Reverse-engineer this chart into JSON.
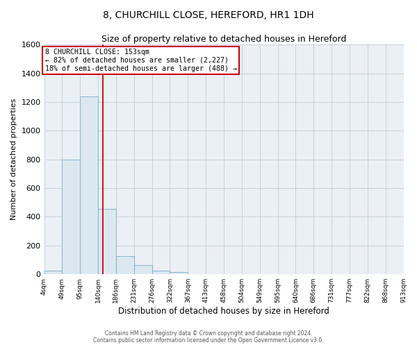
{
  "title": "8, CHURCHILL CLOSE, HEREFORD, HR1 1DH",
  "subtitle": "Size of property relative to detached houses in Hereford",
  "xlabel": "Distribution of detached houses by size in Hereford",
  "ylabel": "Number of detached properties",
  "bin_labels": [
    "4sqm",
    "49sqm",
    "95sqm",
    "140sqm",
    "186sqm",
    "231sqm",
    "276sqm",
    "322sqm",
    "367sqm",
    "413sqm",
    "458sqm",
    "504sqm",
    "549sqm",
    "595sqm",
    "640sqm",
    "686sqm",
    "731sqm",
    "777sqm",
    "822sqm",
    "868sqm",
    "913sqm"
  ],
  "bar_heights": [
    25,
    800,
    1240,
    455,
    125,
    62,
    25,
    15,
    0,
    0,
    0,
    0,
    0,
    0,
    0,
    0,
    0,
    0,
    0,
    0
  ],
  "bar_color": "#dce8f0",
  "bar_edge_color": "#7baac8",
  "ylim": [
    0,
    1600
  ],
  "yticks": [
    0,
    200,
    400,
    600,
    800,
    1000,
    1200,
    1400,
    1600
  ],
  "bin_edges_num": [
    4,
    49,
    95,
    140,
    186,
    231,
    276,
    322,
    367,
    413,
    458,
    504,
    549,
    595,
    640,
    686,
    731,
    777,
    822,
    868,
    913
  ],
  "prop_size": 153,
  "annotation_title": "8 CHURCHILL CLOSE: 153sqm",
  "annotation_line1": "← 82% of detached houses are smaller (2,227)",
  "annotation_line2": "18% of semi-detached houses are larger (488) →",
  "annotation_box_color": "#ffffff",
  "annotation_box_edge": "#cc0000",
  "red_line_color": "#cc0000",
  "grid_color": "#c8d0d8",
  "bg_color": "#eaf0f5",
  "footer1": "Contains HM Land Registry data © Crown copyright and database right 2024.",
  "footer2": "Contains public sector information licensed under the Open Government Licence v3.0."
}
